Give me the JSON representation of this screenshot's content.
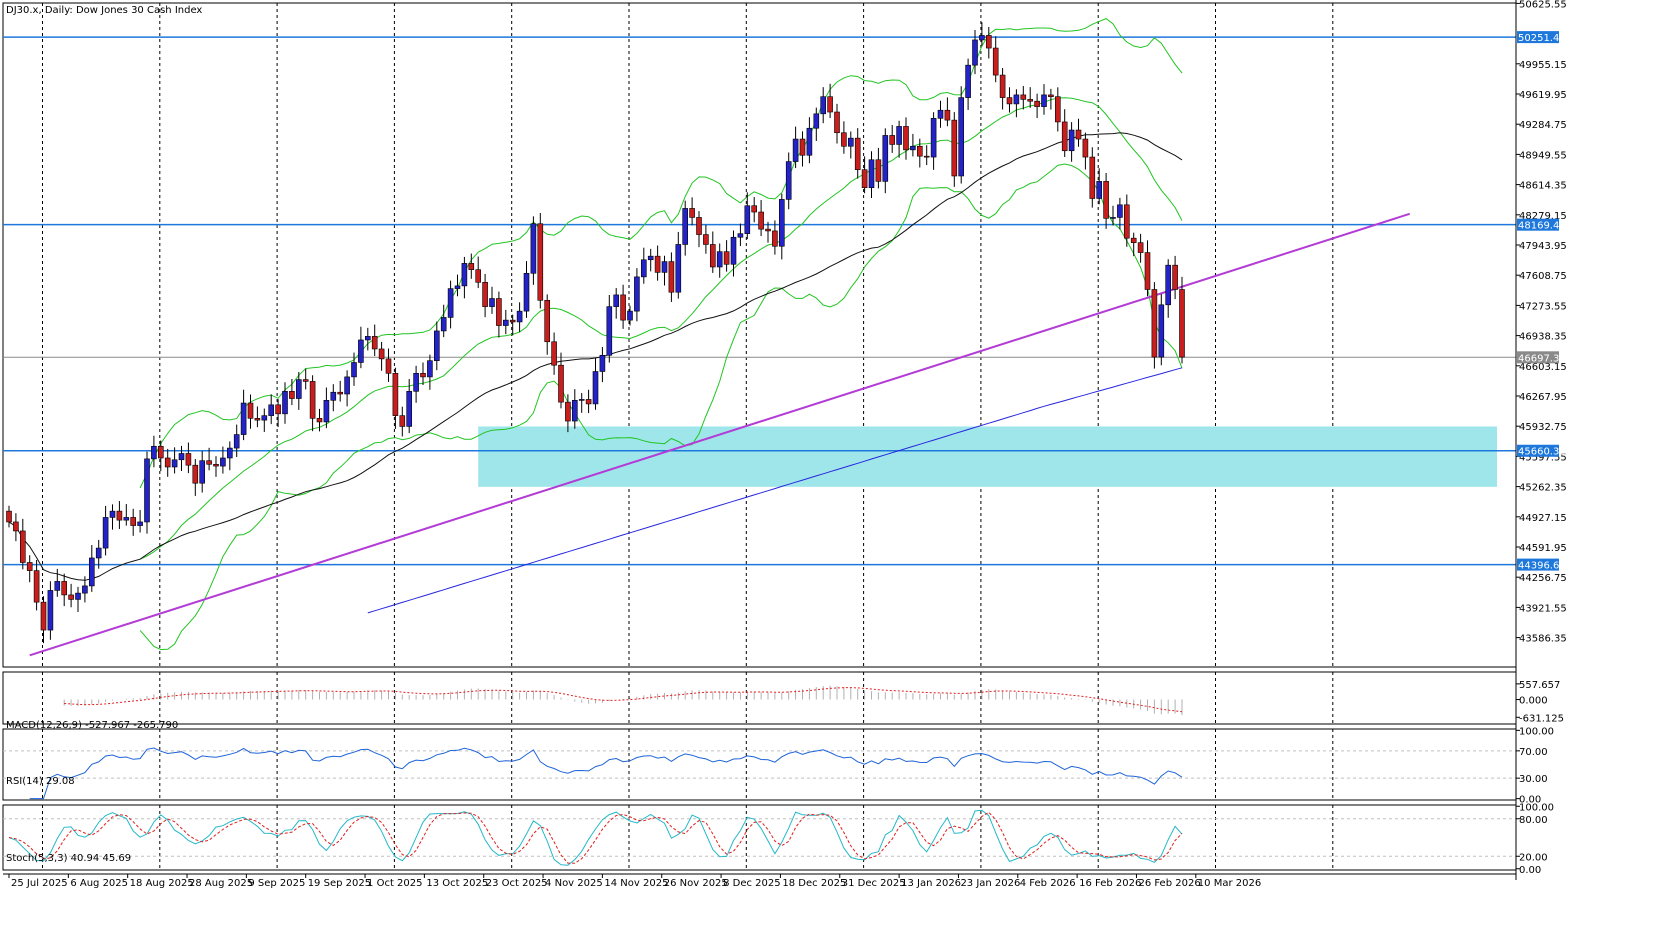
{
  "colors": {
    "bull_body": "#2323c8",
    "bear_body": "#c81e1e",
    "wick": "#000000",
    "level_line": "#1e78dc",
    "trendline": "#b33bd6",
    "bollinger": "#22c422",
    "ma_black": "#111111",
    "ma_blue": "#2626e0",
    "zone": "#9fe6ea",
    "macd_signal": "#e01f1f",
    "rsi_line": "#1e64d8",
    "stoch_main": "#24b8c8",
    "stoch_signal": "#e01f1f"
  },
  "chart_data": [
    {
      "type": "candlestick",
      "title": "DJ30.x, Daily:  Dow Jones 30 Cash Index",
      "price_ticks": [
        "50625.55",
        "49955.15",
        "49619.95",
        "49284.75",
        "48949.55",
        "48614.35",
        "48279.15",
        "47943.95",
        "47608.75",
        "47273.55",
        "46938.35",
        "46603.15",
        "46267.95",
        "45932.75",
        "45597.55",
        "45262.35",
        "44927.15",
        "44591.95",
        "44256.75",
        "43921.55",
        "43586.35"
      ],
      "ylim": [
        43260,
        50630
      ],
      "date_ticks": [
        "25 Jul 2025",
        "6 Aug 2025",
        "18 Aug 2025",
        "28 Aug 2025",
        "9 Sep 2025",
        "19 Sep 2025",
        "1 Oct 2025",
        "13 Oct 2025",
        "23 Oct 2025",
        "4 Nov 2025",
        "14 Nov 2025",
        "26 Nov 2025",
        "8 Dec 2025",
        "18 Dec 2025",
        "31 Dec 2025",
        "13 Jan 2026",
        "23 Jan 2026",
        "4 Feb 2026",
        "16 Feb 2026",
        "26 Feb 2026",
        "10 Mar 2026"
      ],
      "levels": [
        {
          "label": "50251.45",
          "value": 50251.45
        },
        {
          "label": "48169.43",
          "value": 48169.43
        },
        {
          "label": "45660.32",
          "value": 45660.32
        },
        {
          "label": "44396.64",
          "value": 44396.64
        }
      ],
      "current_price": {
        "label": "46697.39",
        "value": 46697.39
      },
      "support_zone": [
        45260,
        45930
      ],
      "trendline": [
        [
          3,
          43390
        ],
        [
          203,
          48290
        ]
      ],
      "close": [
        44870,
        44770,
        44420,
        44330,
        43980,
        43670,
        44110,
        44210,
        44060,
        44010,
        44080,
        44160,
        44470,
        44580,
        44920,
        44990,
        44890,
        44920,
        44830,
        44870,
        45570,
        45710,
        45580,
        45480,
        45560,
        45630,
        45500,
        45300,
        45550,
        45510,
        45490,
        45580,
        45690,
        45840,
        46190,
        46020,
        46000,
        46050,
        46170,
        46070,
        46320,
        46240,
        46450,
        46430,
        46020,
        45980,
        46220,
        46310,
        46290,
        46480,
        46640,
        46890,
        46930,
        46790,
        46680,
        46520,
        46050,
        45930,
        46320,
        46520,
        46480,
        46660,
        46990,
        47140,
        47460,
        47490,
        47740,
        47670,
        47530,
        47260,
        47350,
        47050,
        47110,
        47090,
        47210,
        47630,
        48180,
        47330,
        46870,
        46610,
        46200,
        45990,
        46220,
        46230,
        46180,
        46540,
        46720,
        47260,
        47390,
        47110,
        47210,
        47590,
        47780,
        47820,
        47640,
        47760,
        47420,
        47950,
        48350,
        48250,
        48060,
        47950,
        47700,
        47870,
        47730,
        48030,
        48070,
        48380,
        48310,
        48120,
        48100,
        47930,
        48450,
        48870,
        49120,
        48940,
        49240,
        49400,
        49590,
        49420,
        49190,
        49040,
        49130,
        48780,
        48580,
        48890,
        48650,
        49160,
        49060,
        49260,
        49000,
        49040,
        48930,
        48920,
        49350,
        49440,
        49330,
        48710,
        49580,
        49940,
        50220,
        50270,
        50130,
        49830,
        49580,
        49510,
        49610,
        49560,
        49540,
        49480,
        49610,
        49590,
        49310,
        48990,
        49220,
        49120,
        48920,
        48460,
        48650,
        48240,
        48250,
        48390,
        48020,
        47970,
        47860,
        47450,
        46700,
        47280,
        47720,
        47450,
        46700
      ]
    },
    {
      "type": "line",
      "title": "MACD(12,26,9) -527.967 -265.790",
      "ticks": [
        "557.657",
        "0.000",
        "-631.125"
      ],
      "ylim": [
        -870,
        980
      ]
    },
    {
      "type": "line",
      "title": "RSI(14) 29.08",
      "ticks": [
        "100.00",
        "70.00",
        "30.00",
        "0.00"
      ],
      "levels": [
        70,
        30
      ],
      "ylim": [
        -2,
        102
      ]
    },
    {
      "type": "line",
      "title": "Stoch(5,3,3) 40.94 45.69",
      "ticks": [
        "100.00",
        "80.00",
        "20.00",
        "0.00"
      ],
      "levels": [
        80,
        20
      ],
      "ylim": [
        -2,
        102
      ]
    }
  ]
}
